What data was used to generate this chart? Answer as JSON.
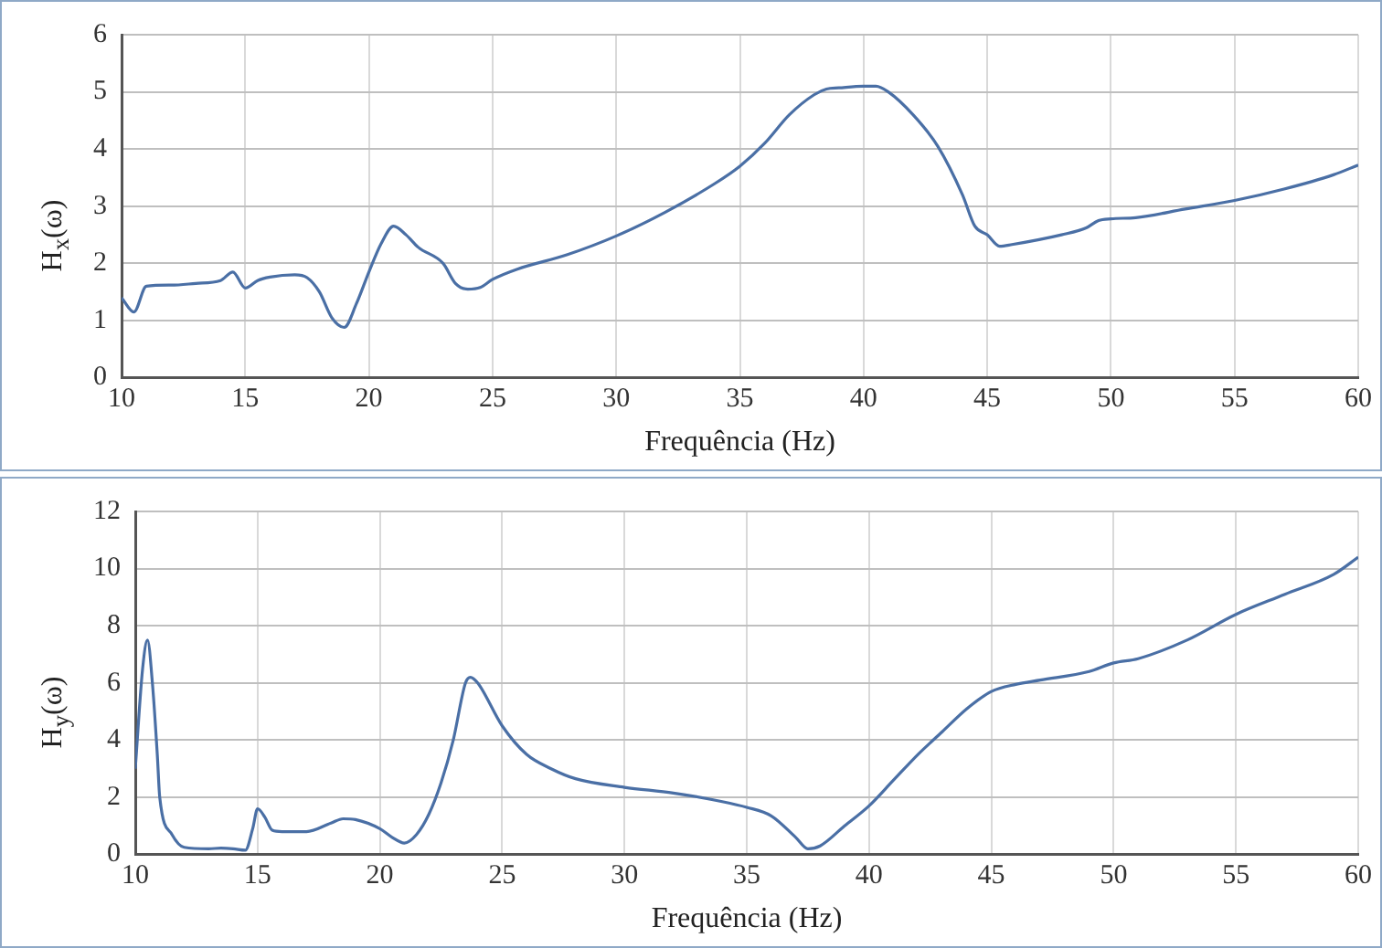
{
  "chart_data": [
    {
      "type": "line",
      "xlabel": "Frequência (Hz)",
      "ylabel": "H$_{x}$(ω)",
      "xlim": [
        10,
        60
      ],
      "xticks": [
        10,
        15,
        20,
        25,
        30,
        35,
        40,
        45,
        50,
        55,
        60
      ],
      "ylim": [
        0,
        6
      ],
      "yticks": [
        0,
        1,
        2,
        3,
        4,
        5,
        6
      ],
      "grid": true,
      "series": [
        {
          "color": "#4a6fa5",
          "x": [
            10,
            10.5,
            11,
            12,
            13,
            14,
            14.5,
            15,
            15.5,
            16,
            17,
            17.5,
            18,
            18.5,
            19,
            19.5,
            20,
            20.5,
            21,
            21.5,
            22,
            23,
            23.5,
            24,
            24.5,
            25,
            26,
            28,
            30,
            32,
            34,
            35,
            36,
            37,
            38,
            38.5,
            39,
            40,
            40.5,
            41,
            42,
            43,
            44,
            44.5,
            45,
            45.5,
            46,
            48,
            49,
            49.5,
            50,
            51,
            53,
            55,
            57,
            59,
            60
          ],
          "values": [
            1.4,
            1.15,
            1.6,
            1.62,
            1.65,
            1.7,
            1.85,
            1.57,
            1.7,
            1.76,
            1.8,
            1.75,
            1.5,
            1.05,
            0.88,
            1.3,
            1.85,
            2.35,
            2.65,
            2.5,
            2.28,
            2.0,
            1.65,
            1.55,
            1.58,
            1.72,
            1.9,
            2.15,
            2.48,
            2.9,
            3.4,
            3.7,
            4.1,
            4.6,
            4.95,
            5.05,
            5.07,
            5.1,
            5.1,
            5.0,
            4.6,
            4.05,
            3.2,
            2.65,
            2.5,
            2.3,
            2.33,
            2.5,
            2.62,
            2.75,
            2.78,
            2.8,
            2.95,
            3.1,
            3.3,
            3.55,
            3.72
          ]
        }
      ]
    },
    {
      "type": "line",
      "xlabel": "Frequência (Hz)",
      "ylabel": "H$_{y}$(ω)",
      "xlim": [
        10,
        60
      ],
      "xticks": [
        10,
        15,
        20,
        25,
        30,
        35,
        40,
        45,
        50,
        55,
        60
      ],
      "ylim": [
        0,
        12
      ],
      "yticks": [
        0,
        2,
        4,
        6,
        8,
        10,
        12
      ],
      "grid": true,
      "series": [
        {
          "color": "#4a6fa5",
          "x": [
            10,
            10.3,
            10.5,
            10.7,
            10.9,
            11,
            11.5,
            12,
            13,
            13.5,
            14,
            14.5,
            14.8,
            15,
            15.3,
            15.6,
            16,
            17,
            18,
            18.5,
            19,
            20,
            20.5,
            21,
            21.5,
            22,
            22.5,
            23,
            23.5,
            23.7,
            24,
            25,
            26,
            27,
            28,
            30,
            32,
            34,
            35,
            36,
            37,
            37.5,
            38,
            39,
            40,
            41,
            42,
            43,
            44,
            45,
            46,
            47,
            49,
            50,
            51,
            53,
            55,
            57,
            59,
            60
          ],
          "values": [
            3.0,
            6.5,
            7.5,
            6.0,
            3.5,
            2.0,
            0.7,
            0.25,
            0.2,
            0.22,
            0.2,
            0.15,
            0.9,
            1.6,
            1.3,
            0.85,
            0.8,
            0.8,
            1.1,
            1.25,
            1.22,
            0.9,
            0.6,
            0.4,
            0.7,
            1.4,
            2.5,
            4.0,
            6.0,
            6.2,
            6.0,
            4.5,
            3.5,
            3.0,
            2.65,
            2.35,
            2.15,
            1.85,
            1.65,
            1.35,
            0.6,
            0.2,
            0.3,
            1.0,
            1.7,
            2.6,
            3.5,
            4.3,
            5.1,
            5.7,
            5.95,
            6.1,
            6.4,
            6.7,
            6.85,
            7.5,
            8.4,
            9.1,
            9.8,
            10.4
          ]
        }
      ]
    }
  ]
}
